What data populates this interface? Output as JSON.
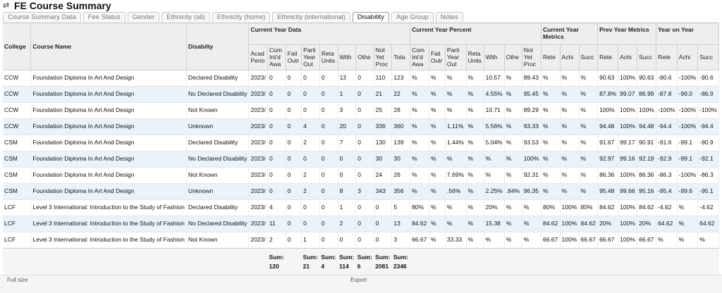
{
  "title": "FE Course Summary",
  "tabs": [
    "Course Summary Data",
    "Fee Status",
    "Gender",
    "Ethnicity (all)",
    "Ethnicity (home)",
    "Ethnicity (international)",
    "Disability",
    "Age Group",
    "Notes"
  ],
  "active_tab": "Disability",
  "headers": {
    "college": "College",
    "course_name": "Course Name",
    "disability": "Disabilty",
    "groups": [
      "Current Year Data",
      "Current Year Percent",
      "Current Year Metrics",
      "Prev Year Metrics",
      "Year on Year"
    ],
    "current_data_cols": [
      "Acad Perio",
      "Com Int'd Awa",
      "Fail Outr",
      "Parti Year Out",
      "Reta Units",
      "With",
      "Othe",
      "Not Yet Proc",
      "Tota"
    ],
    "current_pct_cols": [
      "Com Int'd Awa",
      "Fail Outr",
      "Parti Year Out",
      "Reta Units",
      "With",
      "Othe",
      "Not Yet Proc"
    ],
    "metric_cols": [
      "Rete",
      "Achi",
      "Succ"
    ],
    "prev_cols": [
      "Rete",
      "Achi",
      "Succ"
    ],
    "yoy_cols": [
      "Rete",
      "Achi",
      "Succ"
    ]
  },
  "rows": [
    {
      "college": "CCW",
      "course": "Foundation Diploma In Art And Design",
      "disability": "Declared Disability",
      "data": [
        "2023/",
        "0",
        "0",
        "0",
        "0",
        "13",
        "0",
        "110",
        "123"
      ],
      "pct": [
        "%",
        "%",
        "%",
        "%",
        "10.57",
        "%",
        "89.43"
      ],
      "cur": [
        "%",
        "%",
        "%"
      ],
      "prev": [
        "90.63",
        "100%",
        "90.63"
      ],
      "yoy": [
        "-90.6",
        "-100%",
        "-90.6"
      ]
    },
    {
      "college": "CCW",
      "course": "Foundation Diploma In Art And Design",
      "disability": "No Declared Disability",
      "data": [
        "2023/",
        "0",
        "0",
        "0",
        "0",
        "1",
        "0",
        "21",
        "22"
      ],
      "pct": [
        "%",
        "%",
        "%",
        "%",
        "4.55%",
        "%",
        "95.45"
      ],
      "cur": [
        "%",
        "%",
        "%"
      ],
      "prev": [
        "87.8%",
        "99.07",
        "86.99"
      ],
      "yoy": [
        "-87.8",
        "-99.0",
        "-86.9"
      ]
    },
    {
      "college": "CCW",
      "course": "Foundation Diploma In Art And Design",
      "disability": "Not Known",
      "data": [
        "2023/",
        "0",
        "0",
        "0",
        "0",
        "3",
        "0",
        "25",
        "28"
      ],
      "pct": [
        "%",
        "%",
        "%",
        "%",
        "10.71",
        "%",
        "89.29"
      ],
      "cur": [
        "%",
        "%",
        "%"
      ],
      "prev": [
        "100%",
        "100%",
        "100%"
      ],
      "yoy": [
        "-100%",
        "-100%",
        "-100%"
      ]
    },
    {
      "college": "CCW",
      "course": "Foundation Diploma In Art And Design",
      "disability": "Unknown",
      "data": [
        "2023/",
        "0",
        "0",
        "4",
        "0",
        "20",
        "0",
        "336",
        "360"
      ],
      "pct": [
        "%",
        "%",
        "1.11%",
        "%",
        "5.56%",
        "%",
        "93.33"
      ],
      "cur": [
        "%",
        "%",
        "%"
      ],
      "prev": [
        "94.48",
        "100%",
        "94.48"
      ],
      "yoy": [
        "-94.4",
        "-100%",
        "-94.4"
      ]
    },
    {
      "college": "CSM",
      "course": "Foundation Diploma In Art And Design",
      "disability": "Declared Disability",
      "data": [
        "2023/",
        "0",
        "0",
        "2",
        "0",
        "7",
        "0",
        "130",
        "139"
      ],
      "pct": [
        "%",
        "%",
        "1.44%",
        "%",
        "5.04%",
        "%",
        "93.53"
      ],
      "cur": [
        "%",
        "%",
        "%"
      ],
      "prev": [
        "91.67",
        "99.17",
        "90.91"
      ],
      "yoy": [
        "-91.6",
        "-99.1",
        "-90.9"
      ]
    },
    {
      "college": "CSM",
      "course": "Foundation Diploma In Art And Design",
      "disability": "No Declared Disability",
      "data": [
        "2023/",
        "0",
        "0",
        "0",
        "0",
        "0",
        "0",
        "30",
        "30"
      ],
      "pct": [
        "%",
        "%",
        "%",
        "%",
        "%",
        "%",
        "100%"
      ],
      "cur": [
        "%",
        "%",
        "%"
      ],
      "prev": [
        "92.97",
        "99.16",
        "92.19"
      ],
      "yoy": [
        "-92.9",
        "-99.1",
        "-92.1"
      ]
    },
    {
      "college": "CSM",
      "course": "Foundation Diploma In Art And Design",
      "disability": "Not Known",
      "data": [
        "2023/",
        "0",
        "0",
        "2",
        "0",
        "0",
        "0",
        "24",
        "26"
      ],
      "pct": [
        "%",
        "%",
        "7.69%",
        "%",
        "%",
        "%",
        "92.31"
      ],
      "cur": [
        "%",
        "%",
        "%"
      ],
      "prev": [
        "86.36",
        "100%",
        "86.36"
      ],
      "yoy": [
        "-86.3",
        "-100%",
        "-86.3"
      ]
    },
    {
      "college": "CSM",
      "course": "Foundation Diploma In Art And Design",
      "disability": "Unknown",
      "data": [
        "2023/",
        "0",
        "0",
        "2",
        "0",
        "8",
        "3",
        "343",
        "356"
      ],
      "pct": [
        "%",
        "%",
        ".56%",
        "%",
        "2.25%",
        ".84%",
        "96.35"
      ],
      "cur": [
        "%",
        "%",
        "%"
      ],
      "prev": [
        "95.48",
        "99.66",
        "95.16"
      ],
      "yoy": [
        "-95.4",
        "-99.6",
        "-95.1"
      ]
    },
    {
      "college": "LCF",
      "course": "Level 3 International: Introduction to the Study of Fashion",
      "disability": "Declared Disability",
      "data": [
        "2023/",
        "4",
        "0",
        "0",
        "0",
        "1",
        "0",
        "0",
        "5"
      ],
      "pct": [
        "80%",
        "%",
        "%",
        "%",
        "20%",
        "%",
        "%"
      ],
      "cur": [
        "80%",
        "100%",
        "80%"
      ],
      "prev": [
        "84.62",
        "100%",
        "84.62"
      ],
      "yoy": [
        "-4.62",
        "%",
        "-4.62"
      ]
    },
    {
      "college": "LCF",
      "course": "Level 3 International: Introduction to the Study of Fashion",
      "disability": "No Declared Disability",
      "data": [
        "2023/",
        "11",
        "0",
        "0",
        "0",
        "2",
        "0",
        "0",
        "13"
      ],
      "pct": [
        "84.62",
        "%",
        "%",
        "%",
        "15.38",
        "%",
        "%"
      ],
      "cur": [
        "84.62",
        "100%",
        "84.62"
      ],
      "prev": [
        "20%",
        "100%",
        "20%"
      ],
      "yoy": [
        "64.62",
        "%",
        "64.62"
      ]
    },
    {
      "college": "LCF",
      "course": "Level 3 International: Introduction to the Study of Fashion",
      "disability": "Not Known",
      "data": [
        "2023/",
        "2",
        "0",
        "1",
        "0",
        "0",
        "0",
        "0",
        "3"
      ],
      "pct": [
        "66.67",
        "%",
        "33.33",
        "%",
        "%",
        "%",
        "%"
      ],
      "cur": [
        "66.67",
        "100%",
        "66.67"
      ],
      "prev": [
        "66.67",
        "100%",
        "66.67"
      ],
      "yoy": [
        "%",
        "%",
        "%"
      ]
    }
  ],
  "sums": {
    "label": "Sum:",
    "values": [
      "120",
      "",
      "21",
      "4",
      "114",
      "6",
      "2081",
      "2346"
    ]
  },
  "footer": {
    "full_size": "Full size",
    "export": "Export"
  }
}
